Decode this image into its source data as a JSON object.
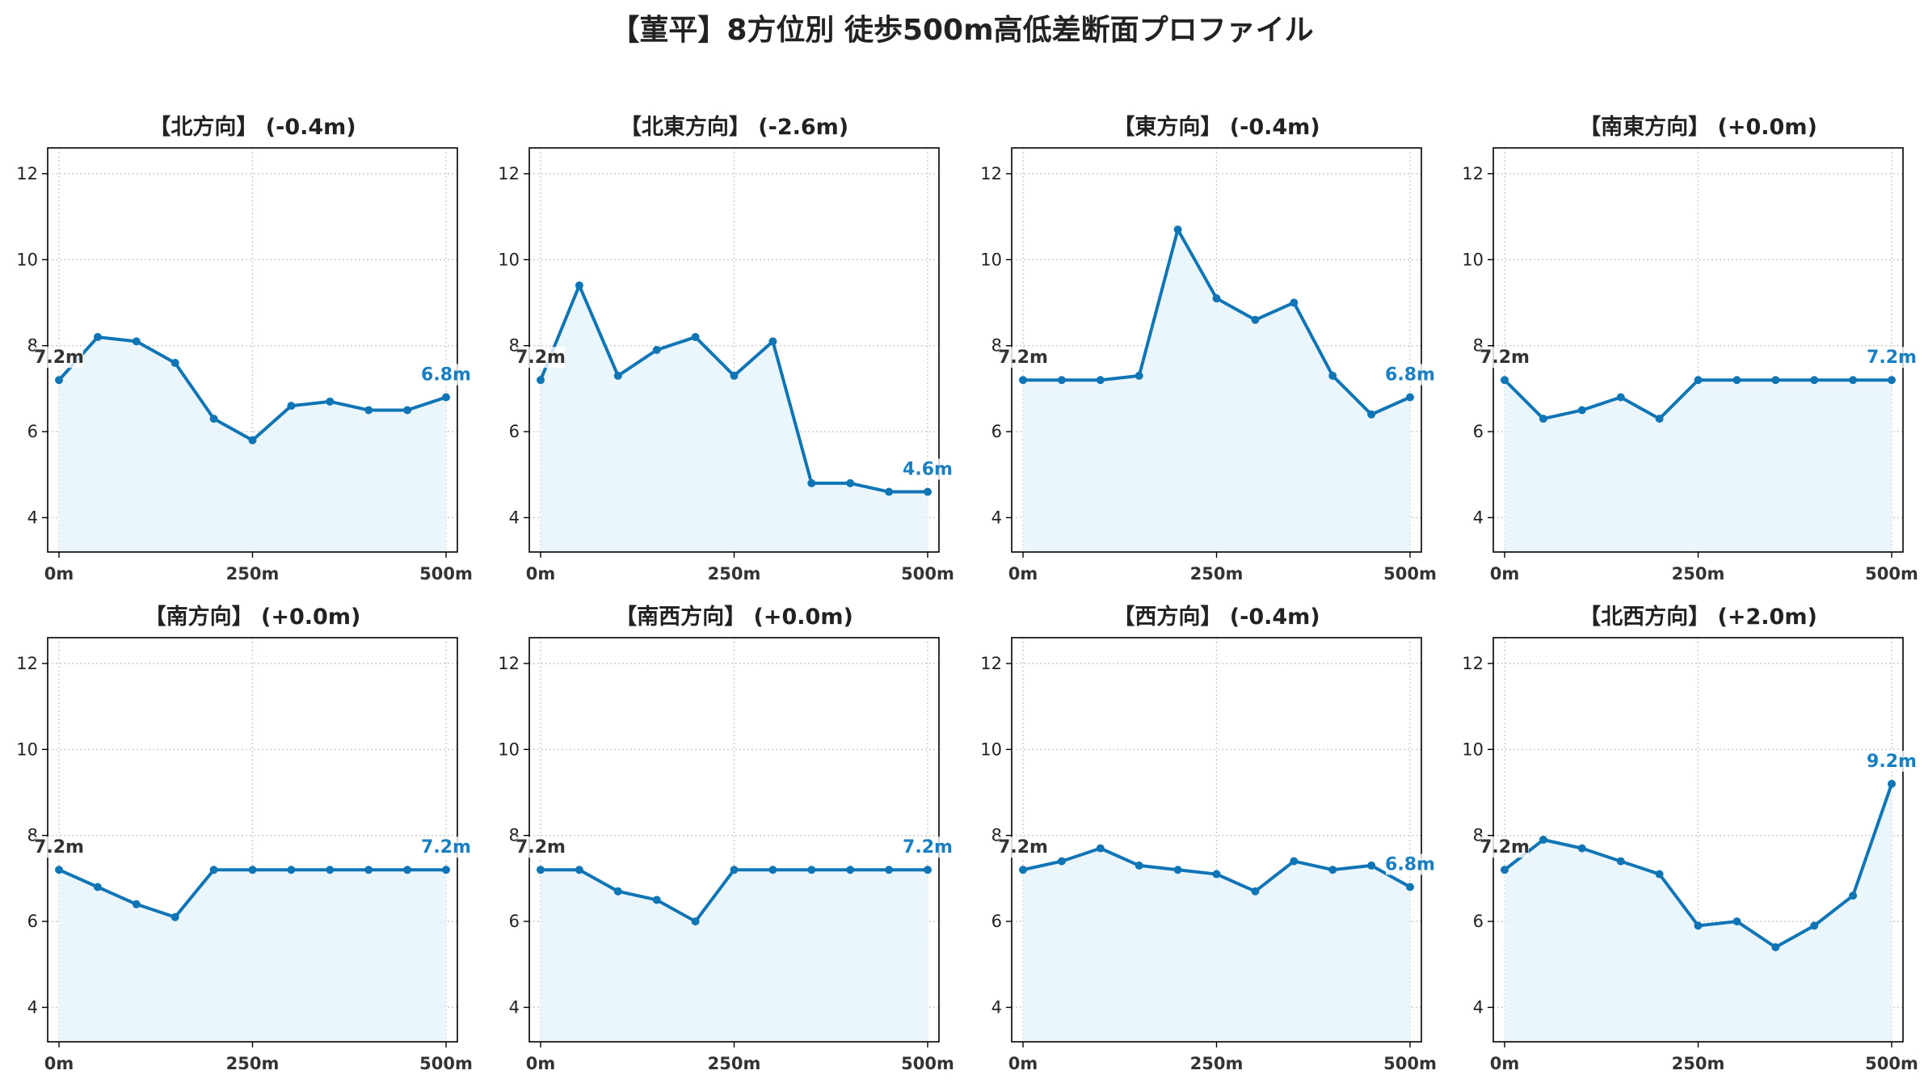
{
  "title": "【菫平】8方位別 徒歩500m高低差断面プロファイル",
  "colors": {
    "line": "#0f75b5",
    "fill": "#e6f5fc",
    "start_label": "#333333",
    "end_label": "#1a7fc0",
    "grid": "#c8c8c8"
  },
  "chart_data": [
    {
      "type": "area",
      "title": "【北方向】 (-0.4m)",
      "x": [
        0,
        50,
        100,
        150,
        200,
        250,
        300,
        350,
        400,
        450,
        500
      ],
      "y": [
        7.2,
        8.2,
        8.1,
        7.6,
        6.3,
        5.8,
        6.6,
        6.7,
        6.5,
        6.5,
        6.8
      ],
      "start_label": "7.2m",
      "end_label": "6.8m",
      "xticks": [
        "0m",
        "250m",
        "500m"
      ],
      "yticks": [
        4,
        6,
        8,
        10,
        12
      ],
      "xlim": [
        0,
        500
      ],
      "ylim": [
        3.2,
        12.6
      ],
      "grid": true
    },
    {
      "type": "area",
      "title": "【北東方向】 (-2.6m)",
      "x": [
        0,
        50,
        100,
        150,
        200,
        250,
        300,
        350,
        400,
        450,
        500
      ],
      "y": [
        7.2,
        9.4,
        7.3,
        7.9,
        8.2,
        7.3,
        8.1,
        4.8,
        4.8,
        4.6,
        4.6
      ],
      "start_label": "7.2m",
      "end_label": "4.6m",
      "xticks": [
        "0m",
        "250m",
        "500m"
      ],
      "yticks": [
        4,
        6,
        8,
        10,
        12
      ],
      "xlim": [
        0,
        500
      ],
      "ylim": [
        3.2,
        12.6
      ],
      "grid": true
    },
    {
      "type": "area",
      "title": "【東方向】 (-0.4m)",
      "x": [
        0,
        50,
        100,
        150,
        200,
        250,
        300,
        350,
        400,
        450,
        500
      ],
      "y": [
        7.2,
        7.2,
        7.2,
        7.3,
        10.7,
        9.1,
        8.6,
        9.0,
        7.3,
        6.4,
        6.8
      ],
      "start_label": "7.2m",
      "end_label": "6.8m",
      "xticks": [
        "0m",
        "250m",
        "500m"
      ],
      "yticks": [
        4,
        6,
        8,
        10,
        12
      ],
      "xlim": [
        0,
        500
      ],
      "ylim": [
        3.2,
        12.6
      ],
      "grid": true
    },
    {
      "type": "area",
      "title": "【南東方向】 (+0.0m)",
      "x": [
        0,
        50,
        100,
        150,
        200,
        250,
        300,
        350,
        400,
        450,
        500
      ],
      "y": [
        7.2,
        6.3,
        6.5,
        6.8,
        6.3,
        7.2,
        7.2,
        7.2,
        7.2,
        7.2,
        7.2
      ],
      "start_label": "7.2m",
      "end_label": "7.2m",
      "xticks": [
        "0m",
        "250m",
        "500m"
      ],
      "yticks": [
        4,
        6,
        8,
        10,
        12
      ],
      "xlim": [
        0,
        500
      ],
      "ylim": [
        3.2,
        12.6
      ],
      "grid": true
    },
    {
      "type": "area",
      "title": "【南方向】 (+0.0m)",
      "x": [
        0,
        50,
        100,
        150,
        200,
        250,
        300,
        350,
        400,
        450,
        500
      ],
      "y": [
        7.2,
        6.8,
        6.4,
        6.1,
        7.2,
        7.2,
        7.2,
        7.2,
        7.2,
        7.2,
        7.2
      ],
      "start_label": "7.2m",
      "end_label": "7.2m",
      "xticks": [
        "0m",
        "250m",
        "500m"
      ],
      "yticks": [
        4,
        6,
        8,
        10,
        12
      ],
      "xlim": [
        0,
        500
      ],
      "ylim": [
        3.2,
        12.6
      ],
      "grid": true
    },
    {
      "type": "area",
      "title": "【南西方向】 (+0.0m)",
      "x": [
        0,
        50,
        100,
        150,
        200,
        250,
        300,
        350,
        400,
        450,
        500
      ],
      "y": [
        7.2,
        7.2,
        6.7,
        6.5,
        6.0,
        7.2,
        7.2,
        7.2,
        7.2,
        7.2,
        7.2
      ],
      "start_label": "7.2m",
      "end_label": "7.2m",
      "xticks": [
        "0m",
        "250m",
        "500m"
      ],
      "yticks": [
        4,
        6,
        8,
        10,
        12
      ],
      "xlim": [
        0,
        500
      ],
      "ylim": [
        3.2,
        12.6
      ],
      "grid": true
    },
    {
      "type": "area",
      "title": "【西方向】 (-0.4m)",
      "x": [
        0,
        50,
        100,
        150,
        200,
        250,
        300,
        350,
        400,
        450,
        500
      ],
      "y": [
        7.2,
        7.4,
        7.7,
        7.3,
        7.2,
        7.1,
        6.7,
        7.4,
        7.2,
        7.3,
        6.8
      ],
      "start_label": "7.2m",
      "end_label": "6.8m",
      "xticks": [
        "0m",
        "250m",
        "500m"
      ],
      "yticks": [
        4,
        6,
        8,
        10,
        12
      ],
      "xlim": [
        0,
        500
      ],
      "ylim": [
        3.2,
        12.6
      ],
      "grid": true
    },
    {
      "type": "area",
      "title": "【北西方向】 (+2.0m)",
      "x": [
        0,
        50,
        100,
        150,
        200,
        250,
        300,
        350,
        400,
        450,
        500
      ],
      "y": [
        7.2,
        7.9,
        7.7,
        7.4,
        7.1,
        5.9,
        6.0,
        5.4,
        5.9,
        6.6,
        9.2
      ],
      "start_label": "7.2m",
      "end_label": "9.2m",
      "xticks": [
        "0m",
        "250m",
        "500m"
      ],
      "yticks": [
        4,
        6,
        8,
        10,
        12
      ],
      "xlim": [
        0,
        500
      ],
      "ylim": [
        3.2,
        12.6
      ],
      "grid": true
    }
  ]
}
